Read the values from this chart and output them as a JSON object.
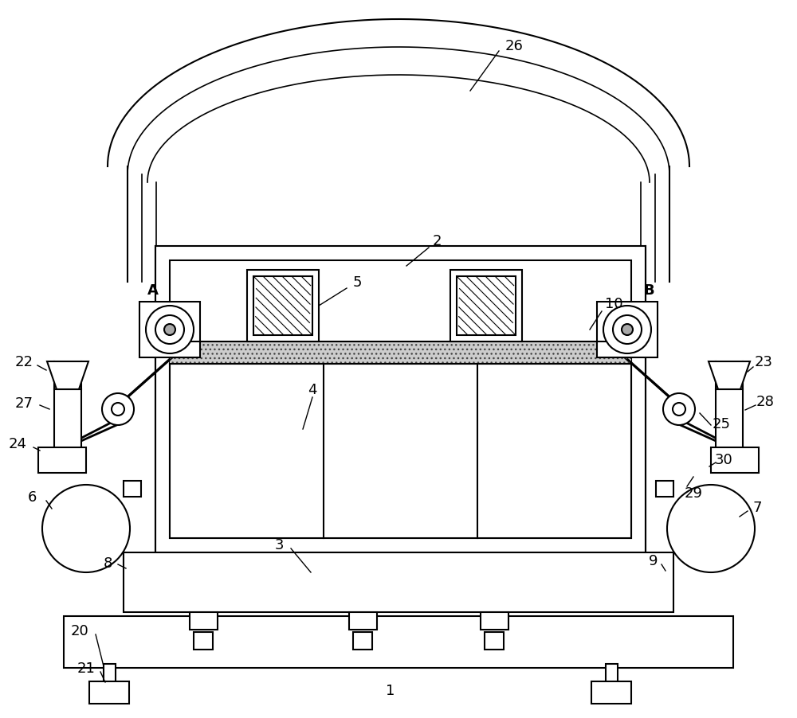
{
  "bg_color": "#ffffff",
  "line_color": "#000000",
  "figw": 10.0,
  "figh": 9.03,
  "dpi": 100
}
